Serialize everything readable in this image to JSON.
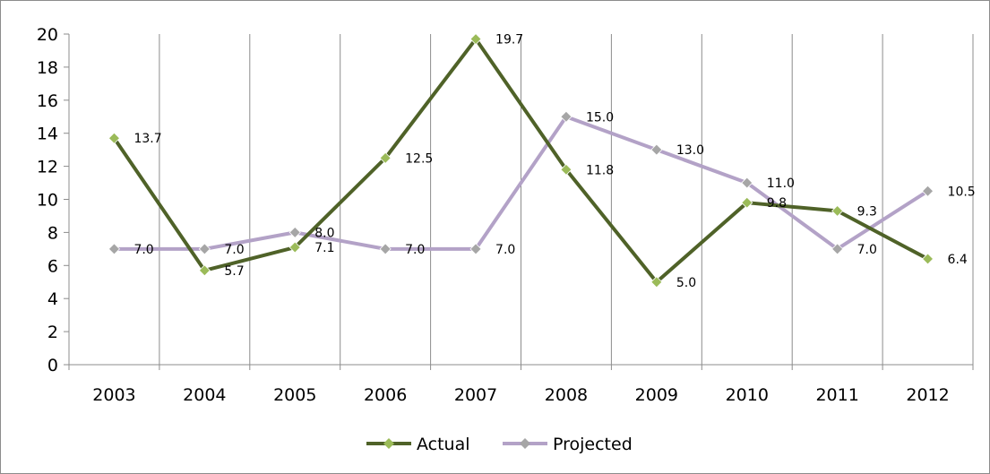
{
  "chart_data": {
    "type": "line",
    "categories": [
      "2003",
      "2004",
      "2005",
      "2006",
      "2007",
      "2008",
      "2009",
      "2010",
      "2011",
      "2012"
    ],
    "series": [
      {
        "name": "Actual",
        "color": "#4f6228",
        "marker_color": "#9bbb59",
        "values": [
          13.7,
          5.7,
          7.1,
          12.5,
          19.7,
          11.8,
          5.0,
          9.8,
          9.3,
          6.4
        ],
        "labels": [
          "13.7",
          "5.7",
          "7.1",
          "12.5",
          "19.7",
          "11.8",
          "5.0",
          "9.8",
          "9.3",
          "6.4"
        ]
      },
      {
        "name": "Projected",
        "color": "#b3a2c7",
        "marker_color": "#a6a6a6",
        "values": [
          7.0,
          7.0,
          8.0,
          7.0,
          7.0,
          15.0,
          13.0,
          11.0,
          7.0,
          10.5
        ],
        "labels": [
          "7.0",
          "7.0",
          "8.0",
          "7.0",
          "7.0",
          "15.0",
          "13.0",
          "11.0",
          "7.0",
          "10.5"
        ]
      }
    ],
    "ylim": [
      0,
      20
    ],
    "yticks": [
      "0",
      "2",
      "4",
      "6",
      "8",
      "10",
      "12",
      "14",
      "16",
      "18",
      "20"
    ],
    "grid": "vertical",
    "legend_position": "bottom",
    "title": "",
    "xlabel": "",
    "ylabel": ""
  }
}
